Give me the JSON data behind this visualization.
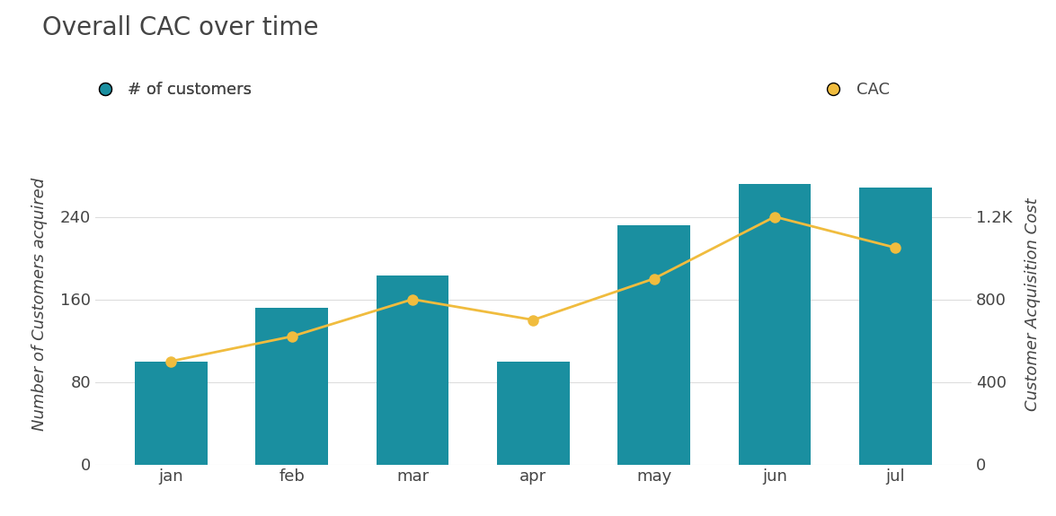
{
  "title": "Overall CAC over time",
  "categories": [
    "jan",
    "feb",
    "mar",
    "apr",
    "may",
    "jun",
    "jul"
  ],
  "customers": [
    100,
    152,
    183,
    100,
    232,
    272,
    268
  ],
  "cac": [
    500,
    620,
    800,
    700,
    900,
    1200,
    1050
  ],
  "bar_color": "#1a8fa0",
  "line_color": "#f0bc3e",
  "background_color": "#ffffff",
  "left_ylabel": "Number of Customers acquired",
  "right_ylabel": "Customer Acquisition Cost",
  "left_yticks": [
    0,
    80,
    160,
    240
  ],
  "right_yticks": [
    0,
    400,
    800,
    1200
  ],
  "right_yticklabels": [
    "0",
    "400",
    "800",
    "1.2K"
  ],
  "left_ylim": [
    0,
    310
  ],
  "right_ylim": [
    0,
    1550
  ],
  "legend_customers_label": "# of customers",
  "legend_cac_label": "CAC",
  "title_fontsize": 20,
  "axis_label_fontsize": 13,
  "tick_fontsize": 13,
  "legend_fontsize": 13,
  "grid_color": "#dddddd",
  "text_color": "#444444",
  "bar_width": 0.6
}
